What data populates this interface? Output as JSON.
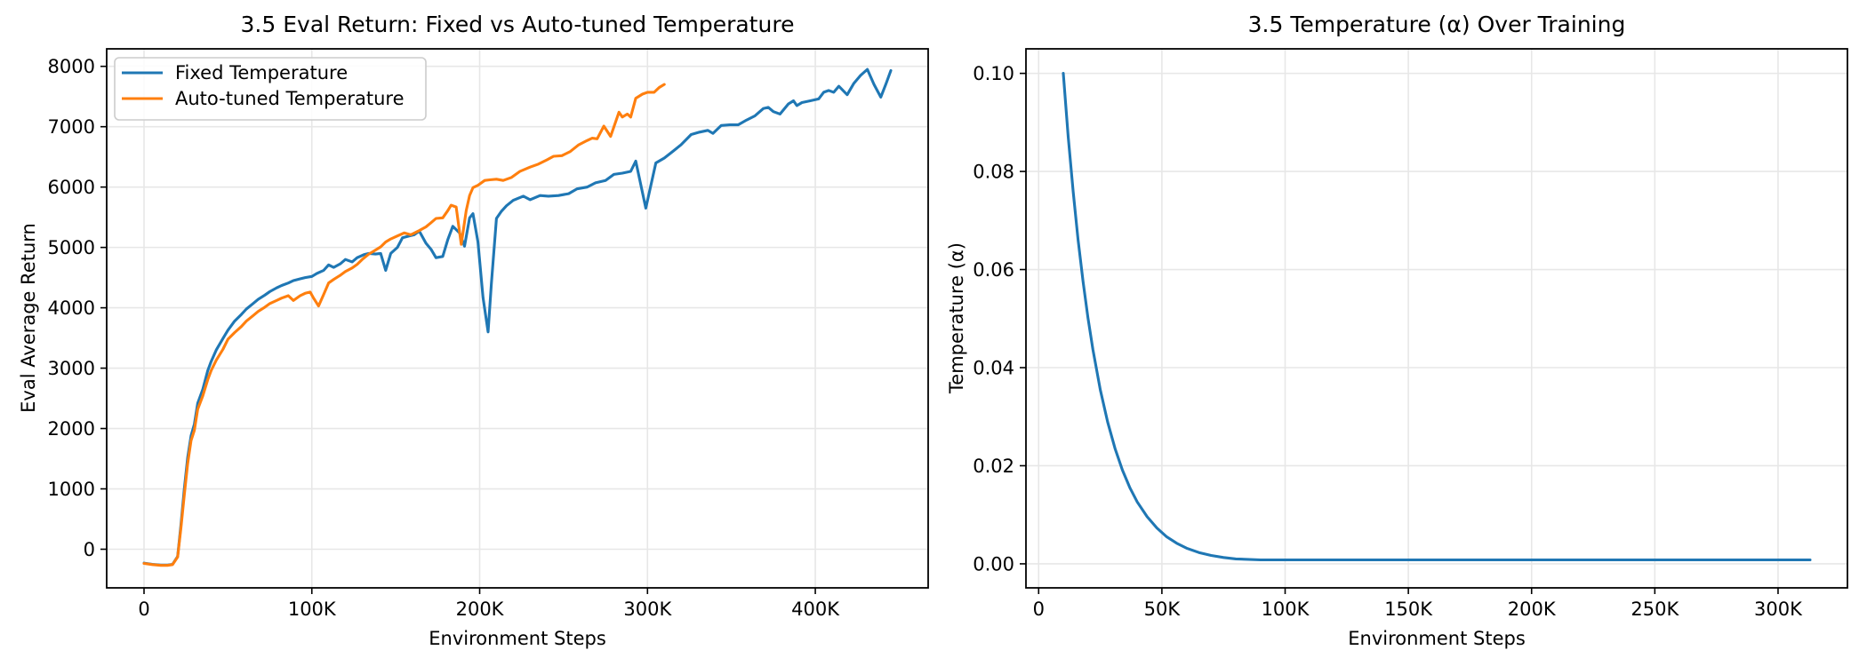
{
  "chart_data": [
    {
      "id": "eval-return",
      "type": "line",
      "title": "3.5 Eval Return: Fixed vs Auto-tuned Temperature",
      "xlabel": "Environment Steps",
      "ylabel": "Eval Average Return",
      "xlim": [
        -22250,
        467250
      ],
      "ylim": [
        -640,
        8290
      ],
      "grid": true,
      "legend_position": "upper-left",
      "xticks": {
        "values": [
          0,
          100000,
          200000,
          300000,
          400000
        ],
        "labels": [
          "0",
          "100K",
          "200K",
          "300K",
          "400K"
        ]
      },
      "yticks": {
        "values": [
          0,
          1000,
          2000,
          3000,
          4000,
          5000,
          6000,
          7000,
          8000
        ],
        "labels": [
          "0",
          "1000",
          "2000",
          "3000",
          "4000",
          "5000",
          "6000",
          "7000",
          "8000"
        ]
      },
      "series": [
        {
          "name": "Fixed Temperature",
          "color": "#1f77b4",
          "points": [
            [
              0,
              -230
            ],
            [
              5000,
              -250
            ],
            [
              10000,
              -262
            ],
            [
              14000,
              -262
            ],
            [
              17000,
              -250
            ],
            [
              20000,
              -120
            ],
            [
              22000,
              400
            ],
            [
              24000,
              1000
            ],
            [
              26000,
              1520
            ],
            [
              28000,
              1880
            ],
            [
              30000,
              2070
            ],
            [
              32000,
              2420
            ],
            [
              35000,
              2650
            ],
            [
              38000,
              2960
            ],
            [
              40000,
              3110
            ],
            [
              43000,
              3300
            ],
            [
              47000,
              3490
            ],
            [
              50000,
              3630
            ],
            [
              54000,
              3780
            ],
            [
              58000,
              3890
            ],
            [
              61000,
              3980
            ],
            [
              65000,
              4070
            ],
            [
              68000,
              4140
            ],
            [
              72000,
              4210
            ],
            [
              75000,
              4270
            ],
            [
              79000,
              4330
            ],
            [
              82000,
              4370
            ],
            [
              86000,
              4410
            ],
            [
              89000,
              4450
            ],
            [
              93000,
              4480
            ],
            [
              96000,
              4500
            ],
            [
              100000,
              4520
            ],
            [
              103000,
              4570
            ],
            [
              107000,
              4620
            ],
            [
              110000,
              4710
            ],
            [
              113000,
              4670
            ],
            [
              117000,
              4730
            ],
            [
              120000,
              4800
            ],
            [
              124000,
              4760
            ],
            [
              127000,
              4830
            ],
            [
              131000,
              4880
            ],
            [
              134000,
              4900
            ],
            [
              138000,
              4890
            ],
            [
              141000,
              4900
            ],
            [
              144000,
              4620
            ],
            [
              147000,
              4900
            ],
            [
              151000,
              5000
            ],
            [
              154000,
              5160
            ],
            [
              158000,
              5190
            ],
            [
              161000,
              5210
            ],
            [
              164000,
              5270
            ],
            [
              168000,
              5070
            ],
            [
              171000,
              4970
            ],
            [
              174000,
              4830
            ],
            [
              178000,
              4850
            ],
            [
              181000,
              5130
            ],
            [
              184000,
              5350
            ],
            [
              188000,
              5240
            ],
            [
              191000,
              5020
            ],
            [
              194000,
              5490
            ],
            [
              196000,
              5560
            ],
            [
              199000,
              5090
            ],
            [
              202000,
              4170
            ],
            [
              205000,
              3600
            ],
            [
              207000,
              4400
            ],
            [
              210000,
              5480
            ],
            [
              213000,
              5600
            ],
            [
              216000,
              5690
            ],
            [
              220000,
              5780
            ],
            [
              226000,
              5850
            ],
            [
              230000,
              5790
            ],
            [
              236000,
              5860
            ],
            [
              241000,
              5850
            ],
            [
              247000,
              5860
            ],
            [
              253000,
              5890
            ],
            [
              258000,
              5970
            ],
            [
              264000,
              6000
            ],
            [
              269000,
              6070
            ],
            [
              275000,
              6110
            ],
            [
              280000,
              6210
            ],
            [
              285000,
              6230
            ],
            [
              290000,
              6260
            ],
            [
              293000,
              6430
            ],
            [
              299000,
              5650
            ],
            [
              305000,
              6400
            ],
            [
              310000,
              6480
            ],
            [
              315000,
              6590
            ],
            [
              320000,
              6700
            ],
            [
              326000,
              6870
            ],
            [
              331000,
              6910
            ],
            [
              336000,
              6940
            ],
            [
              339000,
              6890
            ],
            [
              344000,
              7020
            ],
            [
              349000,
              7030
            ],
            [
              354000,
              7030
            ],
            [
              359000,
              7110
            ],
            [
              364000,
              7180
            ],
            [
              369000,
              7300
            ],
            [
              372000,
              7320
            ],
            [
              375000,
              7250
            ],
            [
              379000,
              7210
            ],
            [
              384000,
              7380
            ],
            [
              387000,
              7430
            ],
            [
              389000,
              7350
            ],
            [
              392000,
              7400
            ],
            [
              397000,
              7430
            ],
            [
              402000,
              7460
            ],
            [
              405000,
              7570
            ],
            [
              408000,
              7600
            ],
            [
              411000,
              7570
            ],
            [
              414000,
              7670
            ],
            [
              419000,
              7530
            ],
            [
              423000,
              7720
            ],
            [
              427000,
              7850
            ],
            [
              431000,
              7950
            ],
            [
              435000,
              7700
            ],
            [
              439000,
              7490
            ],
            [
              442000,
              7700
            ],
            [
              445000,
              7930
            ]
          ]
        },
        {
          "name": "Auto-tuned Temperature",
          "color": "#ff7f0e",
          "points": [
            [
              0,
              -235
            ],
            [
              5000,
              -255
            ],
            [
              10000,
              -268
            ],
            [
              14000,
              -268
            ],
            [
              17000,
              -255
            ],
            [
              20000,
              -130
            ],
            [
              22000,
              350
            ],
            [
              24000,
              900
            ],
            [
              26000,
              1420
            ],
            [
              28000,
              1800
            ],
            [
              30000,
              1970
            ],
            [
              32000,
              2320
            ],
            [
              35000,
              2540
            ],
            [
              38000,
              2810
            ],
            [
              40000,
              2960
            ],
            [
              43000,
              3130
            ],
            [
              47000,
              3310
            ],
            [
              50000,
              3480
            ],
            [
              54000,
              3590
            ],
            [
              58000,
              3690
            ],
            [
              61000,
              3780
            ],
            [
              65000,
              3870
            ],
            [
              68000,
              3940
            ],
            [
              72000,
              4010
            ],
            [
              75000,
              4070
            ],
            [
              79000,
              4120
            ],
            [
              82000,
              4160
            ],
            [
              86000,
              4200
            ],
            [
              89000,
              4120
            ],
            [
              93000,
              4200
            ],
            [
              96000,
              4240
            ],
            [
              99000,
              4260
            ],
            [
              101000,
              4160
            ],
            [
              104000,
              4030
            ],
            [
              107000,
              4220
            ],
            [
              110000,
              4410
            ],
            [
              113000,
              4470
            ],
            [
              117000,
              4540
            ],
            [
              120000,
              4600
            ],
            [
              124000,
              4660
            ],
            [
              127000,
              4720
            ],
            [
              130000,
              4800
            ],
            [
              134000,
              4890
            ],
            [
              137000,
              4940
            ],
            [
              141000,
              5010
            ],
            [
              144000,
              5090
            ],
            [
              147000,
              5140
            ],
            [
              151000,
              5190
            ],
            [
              155000,
              5240
            ],
            [
              159000,
              5210
            ],
            [
              164000,
              5280
            ],
            [
              168000,
              5340
            ],
            [
              171000,
              5410
            ],
            [
              174000,
              5480
            ],
            [
              178000,
              5490
            ],
            [
              181000,
              5610
            ],
            [
              183000,
              5700
            ],
            [
              186000,
              5670
            ],
            [
              189000,
              5050
            ],
            [
              192000,
              5610
            ],
            [
              194000,
              5860
            ],
            [
              196000,
              5990
            ],
            [
              199000,
              6030
            ],
            [
              203000,
              6110
            ],
            [
              206000,
              6120
            ],
            [
              210000,
              6130
            ],
            [
              214000,
              6110
            ],
            [
              219000,
              6160
            ],
            [
              224000,
              6260
            ],
            [
              230000,
              6330
            ],
            [
              235000,
              6380
            ],
            [
              240000,
              6450
            ],
            [
              244000,
              6510
            ],
            [
              249000,
              6520
            ],
            [
              254000,
              6590
            ],
            [
              259000,
              6700
            ],
            [
              264000,
              6770
            ],
            [
              267000,
              6810
            ],
            [
              270000,
              6800
            ],
            [
              274000,
              7010
            ],
            [
              278000,
              6840
            ],
            [
              283000,
              7240
            ],
            [
              285000,
              7160
            ],
            [
              288000,
              7210
            ],
            [
              290000,
              7160
            ],
            [
              293000,
              7470
            ],
            [
              297000,
              7540
            ],
            [
              300000,
              7570
            ],
            [
              304000,
              7570
            ],
            [
              307000,
              7650
            ],
            [
              310000,
              7700
            ]
          ]
        }
      ]
    },
    {
      "id": "temperature",
      "type": "line",
      "title": "3.5 Temperature (α) Over Training",
      "xlabel": "Environment Steps",
      "ylabel": "Temperature (α)",
      "xlim": [
        -5150,
        328150
      ],
      "ylim": [
        -0.0049,
        0.105
      ],
      "grid": true,
      "legend_position": null,
      "xticks": {
        "values": [
          0,
          50000,
          100000,
          150000,
          200000,
          250000,
          300000
        ],
        "labels": [
          "0",
          "50K",
          "100K",
          "150K",
          "200K",
          "250K",
          "300K"
        ]
      },
      "yticks": {
        "values": [
          0.0,
          0.02,
          0.04,
          0.06,
          0.08,
          0.1
        ],
        "labels": [
          "0.00",
          "0.02",
          "0.04",
          "0.06",
          "0.08",
          "0.10"
        ]
      },
      "series": [
        {
          "name": "Temperature (α)",
          "color": "#1f77b4",
          "points": [
            [
              10000,
              0.1
            ],
            [
              12000,
              0.0871
            ],
            [
              14000,
              0.0759
            ],
            [
              16000,
              0.0661
            ],
            [
              18000,
              0.0576
            ],
            [
              20000,
              0.0502
            ],
            [
              22000,
              0.0437
            ],
            [
              25000,
              0.0355
            ],
            [
              28000,
              0.0289
            ],
            [
              31000,
              0.0235
            ],
            [
              34000,
              0.0191
            ],
            [
              37000,
              0.0155
            ],
            [
              40000,
              0.0126
            ],
            [
              44000,
              0.0096
            ],
            [
              48000,
              0.0073
            ],
            [
              52000,
              0.0055
            ],
            [
              56000,
              0.0042
            ],
            [
              60000,
              0.0032
            ],
            [
              65000,
              0.0023
            ],
            [
              70000,
              0.0017
            ],
            [
              75000,
              0.0013
            ],
            [
              80000,
              0.001
            ],
            [
              90000,
              0.0008
            ],
            [
              100000,
              0.0008
            ],
            [
              120000,
              0.0008
            ],
            [
              150000,
              0.0008
            ],
            [
              200000,
              0.0008
            ],
            [
              250000,
              0.0008
            ],
            [
              313000,
              0.0008
            ]
          ]
        }
      ]
    }
  ]
}
